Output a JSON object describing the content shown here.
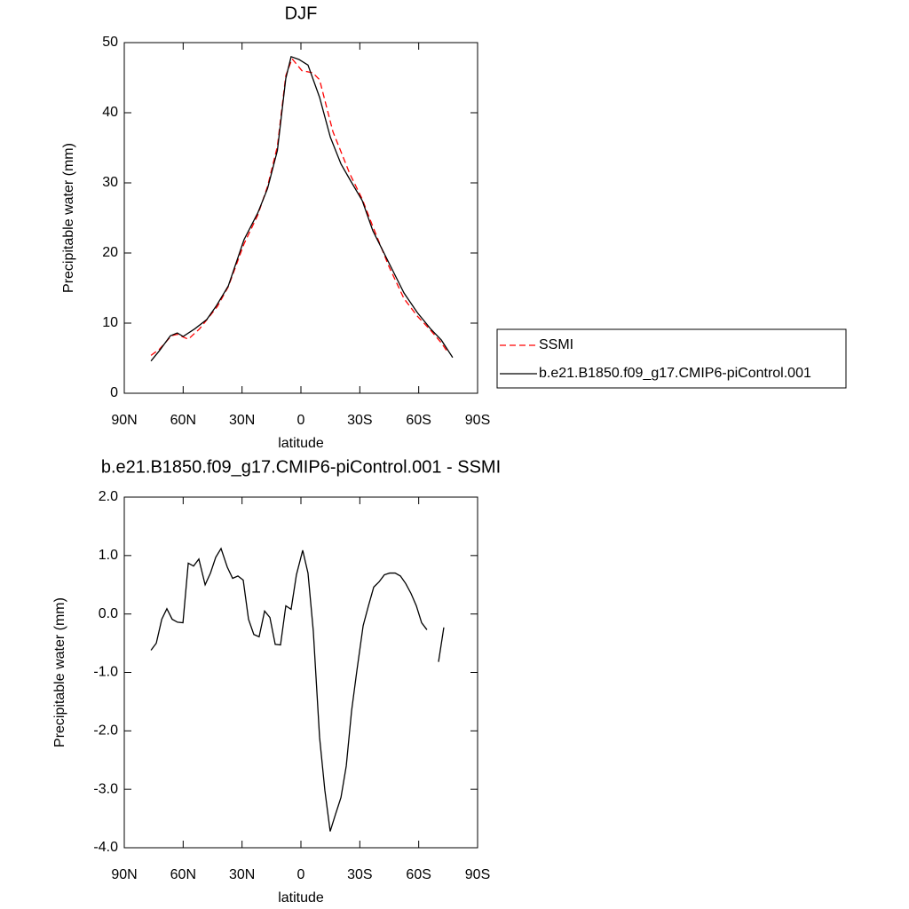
{
  "chart_data": [
    {
      "type": "line",
      "title": "DJF",
      "xlabel": "latitude",
      "ylabel": "Precipitable water (mm)",
      "xlim": [
        90,
        -90
      ],
      "xticks": [
        {
          "value": 90,
          "label": "90N"
        },
        {
          "value": 60,
          "label": "60N"
        },
        {
          "value": 30,
          "label": "30N"
        },
        0,
        {
          "value": -30,
          "label": "30S"
        },
        {
          "value": -60,
          "label": "60S"
        },
        {
          "value": -90,
          "label": "90S"
        }
      ],
      "ylim": [
        0,
        50
      ],
      "yticks": [
        0,
        10,
        20,
        30,
        40,
        50
      ],
      "legend": "right",
      "series": [
        {
          "name": "SSMI",
          "color": "#ff0000",
          "dash": "dashed",
          "x": [
            76.4,
            72,
            66,
            63,
            57.4,
            51.6,
            42.5,
            37,
            29,
            22,
            17,
            12,
            7.7,
            4.5,
            -0.5,
            -6,
            -9.5,
            -16.3,
            -24.9,
            -31.2,
            -36.6,
            -44.8,
            -52.5,
            -59.3,
            -66,
            -71.5,
            -74.2
          ],
          "values": [
            5.4,
            6.3,
            8.2,
            8.4,
            7.7,
            9.2,
            12.4,
            15.2,
            21.3,
            25.4,
            29.5,
            35.2,
            45.3,
            47.7,
            46,
            45.7,
            44.7,
            37.3,
            31.3,
            27.7,
            23.8,
            18.1,
            13.5,
            11,
            9,
            7.2,
            6.1
          ]
        },
        {
          "name": "b.e21.B1850.f09_g17.CMIP6-piControl.001",
          "color": "#000000",
          "dash": "solid",
          "x": [
            76.4,
            72,
            66.5,
            63,
            60,
            54,
            48,
            43,
            37,
            29,
            22,
            17,
            12,
            7.7,
            5,
            1,
            -3.6,
            -9.5,
            -15,
            -20.4,
            -25.3,
            -31.2,
            -36.6,
            -45.7,
            -52.5,
            -59.3,
            -66,
            -71.5,
            -77.3
          ],
          "values": [
            4.6,
            6.1,
            8.2,
            8.6,
            8.1,
            9.2,
            10.5,
            12.5,
            15.3,
            21.9,
            25.7,
            29.2,
            34.6,
            44.9,
            48,
            47.6,
            46.8,
            42.2,
            36.5,
            32.7,
            30.3,
            27.5,
            23.2,
            18.1,
            14.3,
            11.5,
            9.2,
            7.6,
            5.1
          ]
        }
      ]
    },
    {
      "type": "line",
      "title": "b.e21.B1850.f09_g17.CMIP6-piControl.001 - SSMI",
      "xlabel": "latitude",
      "ylabel": "Precipitable water (mm)",
      "xlim": [
        90,
        -90
      ],
      "xticks": [
        {
          "value": 90,
          "label": "90N"
        },
        {
          "value": 60,
          "label": "60N"
        },
        {
          "value": 30,
          "label": "30N"
        },
        0,
        {
          "value": -30,
          "label": "30S"
        },
        {
          "value": -60,
          "label": "60S"
        },
        {
          "value": -90,
          "label": "90S"
        }
      ],
      "ylim": [
        -4,
        2
      ],
      "yticks": [
        {
          "value": 2,
          "label": "2.0"
        },
        {
          "value": 1,
          "label": "1.0"
        },
        {
          "value": 0,
          "label": "0.0"
        },
        {
          "value": -1,
          "label": "-1.0"
        },
        {
          "value": -2,
          "label": "-2.0"
        },
        {
          "value": -3,
          "label": "-3.0"
        },
        {
          "value": -4,
          "label": "-4.0"
        }
      ],
      "series": [
        {
          "color": "#000000",
          "dash": "solid",
          "x": [
            76.4,
            73.7,
            70.9,
            68.3,
            65.6,
            62.9,
            60.1,
            57.4,
            54.7,
            52,
            48.8,
            46.1,
            43.4,
            40.7,
            37.5,
            34.8,
            32.1,
            29.4,
            26.7,
            24,
            21.3,
            18.5,
            15.8,
            13.1,
            10.4,
            7.7,
            5,
            2.3,
            -0.9,
            -3.6,
            -6.3,
            -9.5,
            -12.2,
            -14.9,
            -17.6,
            -20.4,
            -23.1,
            -25.8,
            -28.5,
            -31.7,
            -34.4,
            -37.1,
            -39.8,
            -42.5,
            -45.2,
            -48,
            -50.7,
            -53.4,
            -56.1,
            -58.8,
            -61.5,
            -64.2,
            -67,
            -70.1,
            -72.8
          ],
          "values": [
            -0.62,
            -0.5,
            -0.09,
            0.09,
            -0.09,
            -0.14,
            -0.15,
            0.87,
            0.82,
            0.94,
            0.5,
            0.7,
            0.97,
            1.12,
            0.8,
            0.61,
            0.65,
            0.58,
            -0.09,
            -0.35,
            -0.39,
            0.05,
            -0.06,
            -0.52,
            -0.53,
            0.14,
            0.08,
            0.67,
            1.09,
            0.7,
            -0.29,
            -2.11,
            -3.02,
            -3.72,
            -3.43,
            -3.14,
            -2.6,
            -1.66,
            -0.97,
            -0.2,
            0.14,
            0.46,
            0.55,
            0.67,
            0.7,
            0.7,
            0.65,
            0.52,
            0.35,
            0.14,
            -0.15,
            -0.27,
            null,
            -0.82,
            -0.23
          ]
        }
      ]
    }
  ]
}
